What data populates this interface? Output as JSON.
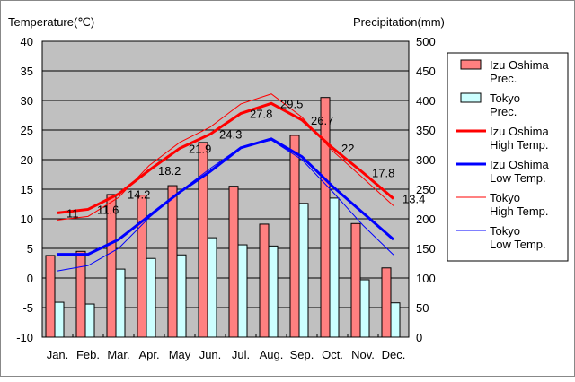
{
  "chart_data": {
    "type": "bar",
    "categories": [
      "Jan.",
      "Feb.",
      "Mar.",
      "Apr.",
      "May",
      "Jun.",
      "Jul.",
      "Aug.",
      "Sep.",
      "Oct.",
      "Nov.",
      "Dec."
    ],
    "ylabel_left": "Temperature(℃)",
    "ylabel_right": "Precipitation(mm)",
    "ylim_left": [
      -10,
      40
    ],
    "ylim_right": [
      0,
      500
    ],
    "yticks_left": [
      40,
      35,
      30,
      25,
      20,
      15,
      10,
      5,
      0,
      -5,
      -10
    ],
    "yticks_right": [
      500,
      450,
      400,
      350,
      300,
      250,
      200,
      150,
      100,
      50,
      0
    ],
    "grid": true,
    "legend_position": "right",
    "bar_series": [
      {
        "name": "Izu Oshima Prec.",
        "legend": [
          "Izu Oshima",
          "Prec."
        ],
        "color": "#ff8080",
        "values": [
          138,
          145,
          241,
          240,
          256,
          329,
          255,
          191,
          341,
          405,
          192,
          117
        ]
      },
      {
        "name": "Tokyo Prec.",
        "legend": [
          "Tokyo",
          "Prec."
        ],
        "color": "#ccffff",
        "values": [
          59,
          56,
          115,
          133,
          139,
          168,
          156,
          154,
          226,
          235,
          97,
          58
        ]
      }
    ],
    "line_series": [
      {
        "name": "Izu Oshima High Temp.",
        "legend": [
          "Izu Oshima",
          "High Temp."
        ],
        "color": "#ff0000",
        "width": 3,
        "values": [
          11,
          11.6,
          14.2,
          18.2,
          21.9,
          24.3,
          27.8,
          29.5,
          26.7,
          22,
          17.8,
          13.4
        ]
      },
      {
        "name": "Izu Oshima Low Temp.",
        "legend": [
          "Izu Oshima",
          "Low Temp."
        ],
        "color": "#0000ff",
        "width": 3,
        "values": [
          4,
          4,
          6.5,
          10.5,
          14.5,
          18,
          22,
          23.5,
          20.5,
          15.5,
          11,
          6.5
        ]
      },
      {
        "name": "Tokyo High Temp.",
        "legend": [
          "Tokyo",
          "High Temp."
        ],
        "color": "#ff0000",
        "width": 1,
        "values": [
          9.8,
          10.4,
          13.6,
          19,
          22.9,
          25.5,
          29.4,
          31.1,
          27.2,
          21.5,
          16.9,
          12.2
        ]
      },
      {
        "name": "Tokyo Low Temp.",
        "legend": [
          "Tokyo",
          "Low Temp."
        ],
        "color": "#0000ff",
        "width": 1,
        "values": [
          1.2,
          2.1,
          5,
          10.2,
          14.6,
          18.5,
          22.1,
          23.3,
          20,
          14.6,
          8.9,
          3.9
        ]
      }
    ],
    "data_labels": [
      "11",
      "11.6",
      "14.2",
      "18.2",
      "21.9",
      "24.3",
      "27.8",
      "29.5",
      "26.7",
      "22",
      "17.8",
      "13.4"
    ]
  }
}
